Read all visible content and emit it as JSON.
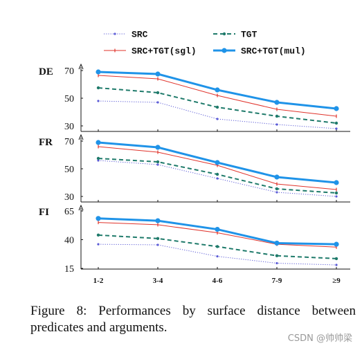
{
  "chart_data": {
    "type": "line",
    "x_categories": [
      "1-2",
      "3-4",
      "4-6",
      "7-9",
      "≥9"
    ],
    "legend": {
      "placement": "top",
      "entries": [
        {
          "name": "SRC",
          "color": "#5a5ad6",
          "style": "dotted"
        },
        {
          "name": "TGT",
          "color": "#1e7a6a",
          "style": "dashed"
        },
        {
          "name": "SRC+TGT(sgl)",
          "color": "#e0322a",
          "style": "solid"
        },
        {
          "name": "SRC+TGT(mul)",
          "color": "#1f93e8",
          "style": "thick-solid"
        }
      ]
    },
    "panels": [
      {
        "label": "DE",
        "yticks": [
          30,
          50,
          70
        ],
        "ylim": [
          28,
          73
        ],
        "series": [
          {
            "name": "SRC",
            "values": [
              48,
              47,
              35,
              31,
              28
            ]
          },
          {
            "name": "TGT",
            "values": [
              57.5,
              54,
              43.5,
              37,
              32
            ]
          },
          {
            "name": "SRC+TGT(sgl)",
            "values": [
              66.5,
              64,
              52,
              42,
              37
            ]
          },
          {
            "name": "SRC+TGT(mul)",
            "values": [
              69,
              67.5,
              56,
              47,
              42.5
            ]
          }
        ]
      },
      {
        "label": "FR",
        "yticks": [
          30,
          50,
          70
        ],
        "ylim": [
          28,
          73
        ],
        "series": [
          {
            "name": "SRC",
            "values": [
              56,
              53,
              43,
              33,
              30
            ]
          },
          {
            "name": "TGT",
            "values": [
              57.5,
              55,
              46,
              35.5,
              32.5
            ]
          },
          {
            "name": "SRC+TGT(sgl)",
            "values": [
              66,
              62,
              52.5,
              39,
              35
            ]
          },
          {
            "name": "SRC+TGT(mul)",
            "values": [
              69,
              65.5,
              54.5,
              44,
              40
            ]
          }
        ]
      },
      {
        "label": "FI",
        "yticks": [
          15,
          40,
          65
        ],
        "ylim": [
          13,
          69
        ],
        "series": [
          {
            "name": "SRC",
            "values": [
              36,
              35.5,
              25.5,
              19.5,
              18
            ]
          },
          {
            "name": "TGT",
            "values": [
              44,
              41,
              34,
              26,
              23.5
            ]
          },
          {
            "name": "SRC+TGT(sgl)",
            "values": [
              55,
              53,
              46,
              36,
              33.5
            ]
          },
          {
            "name": "SRC+TGT(mul)",
            "values": [
              58.5,
              56.5,
              49,
              37,
              36
            ]
          }
        ]
      }
    ]
  },
  "caption": "Figure 8:  Performances by surface distance between predicates and arguments.",
  "watermark": "CSDN @帅帅梁"
}
